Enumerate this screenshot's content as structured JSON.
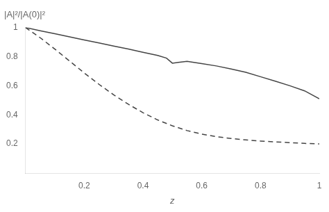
{
  "chart_data": {
    "type": "line",
    "title": "|A|²/|A(0)|²",
    "xlabel": "z",
    "xlim": [
      0,
      1.0
    ],
    "ylim": [
      0,
      1.0
    ],
    "xticks": [
      0.2,
      0.4,
      0.6,
      0.8,
      1.0
    ],
    "yticks": [
      0.2,
      0.4,
      0.6,
      0.8,
      1.0
    ],
    "grid": false,
    "series": [
      {
        "color": "#444444",
        "line_style": "solid",
        "x": [
          0.0,
          0.05,
          0.1,
          0.15,
          0.2,
          0.25,
          0.3,
          0.35,
          0.4,
          0.45,
          0.48,
          0.5,
          0.52,
          0.55,
          0.6,
          0.65,
          0.7,
          0.75,
          0.8,
          0.85,
          0.9,
          0.95,
          1.0
        ],
        "values": [
          1.0,
          0.978,
          0.957,
          0.936,
          0.915,
          0.894,
          0.873,
          0.852,
          0.83,
          0.808,
          0.79,
          0.755,
          0.76,
          0.768,
          0.752,
          0.736,
          0.715,
          0.692,
          0.662,
          0.632,
          0.6,
          0.565,
          0.51
        ]
      },
      {
        "color": "#444444",
        "line_style": "dashed",
        "x": [
          0.0,
          0.05,
          0.1,
          0.15,
          0.2,
          0.25,
          0.3,
          0.35,
          0.4,
          0.45,
          0.5,
          0.55,
          0.6,
          0.65,
          0.7,
          0.75,
          0.8,
          0.85,
          0.9,
          0.95,
          1.0
        ],
        "values": [
          1.0,
          0.93,
          0.852,
          0.77,
          0.688,
          0.61,
          0.538,
          0.473,
          0.415,
          0.365,
          0.325,
          0.292,
          0.268,
          0.25,
          0.238,
          0.228,
          0.22,
          0.214,
          0.209,
          0.204,
          0.2
        ]
      }
    ]
  }
}
